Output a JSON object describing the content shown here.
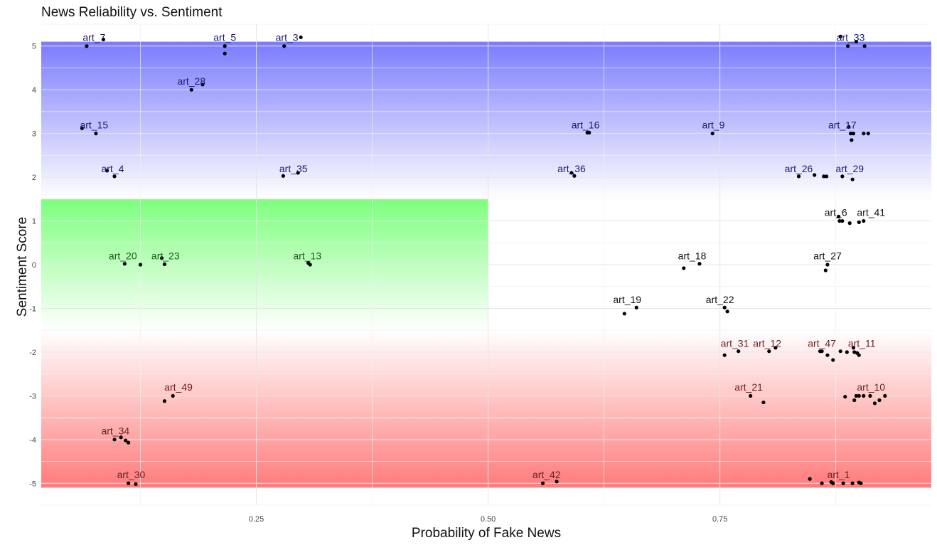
{
  "chart_data": {
    "type": "scatter",
    "title": "News Reliability vs. Sentiment",
    "xlabel": "Probability of Fake News",
    "ylabel": "Sentiment Score",
    "xlim": [
      0.018,
      0.978
    ],
    "ylim": [
      -5.5,
      5.5
    ],
    "x_ticks": [
      0.25,
      0.5,
      0.75
    ],
    "x_tick_labels": [
      "0.25",
      "0.50",
      "0.75"
    ],
    "y_ticks": [
      -5,
      -4,
      -3,
      -2,
      -1,
      0,
      1,
      2,
      3,
      4,
      5
    ],
    "y_tick_labels": [
      "-5",
      "-4",
      "-3",
      "-2",
      "-1",
      "0",
      "1",
      "2",
      "3",
      "4",
      "5"
    ],
    "grid": true,
    "bands": [
      {
        "name": "positive",
        "color": "#7b7bff",
        "x": [
          0.018,
          0.978
        ],
        "y": [
          1.5,
          5.1
        ],
        "fade_toward": "bottom"
      },
      {
        "name": "neutral",
        "color": "#7dff7d",
        "x": [
          0.018,
          0.5
        ],
        "y": [
          -1.5,
          1.5
        ],
        "fade_toward": "bottom"
      },
      {
        "name": "negative",
        "color": "#ff7b7b",
        "x": [
          0.018,
          0.978
        ],
        "y": [
          -5.1,
          -1.5
        ],
        "fade_toward": "top"
      }
    ],
    "point_color": "#000000",
    "points": [
      [
        0.067,
        5.0
      ],
      [
        0.085,
        5.15
      ],
      [
        0.216,
        5.0
      ],
      [
        0.216,
        4.83
      ],
      [
        0.28,
        5.0
      ],
      [
        0.298,
        5.2
      ],
      [
        0.18,
        4.0
      ],
      [
        0.192,
        4.12
      ],
      [
        0.062,
        3.12
      ],
      [
        0.077,
        3.0
      ],
      [
        0.089,
        2.15
      ],
      [
        0.097,
        2.02
      ],
      [
        0.279,
        2.03
      ],
      [
        0.295,
        2.1
      ],
      [
        0.607,
        3.02
      ],
      [
        0.609,
        3.02
      ],
      [
        0.742,
        3.0
      ],
      [
        0.59,
        2.1
      ],
      [
        0.593,
        2.03
      ],
      [
        0.108,
        0.02
      ],
      [
        0.125,
        0.0
      ],
      [
        0.148,
        0.15
      ],
      [
        0.151,
        0.01
      ],
      [
        0.306,
        0.04
      ],
      [
        0.308,
        0.0
      ],
      [
        0.711,
        -0.08
      ],
      [
        0.728,
        0.02
      ],
      [
        0.647,
        -1.12
      ],
      [
        0.66,
        -0.98
      ],
      [
        0.755,
        -0.98
      ],
      [
        0.758,
        -1.07
      ],
      [
        0.755,
        -2.07
      ],
      [
        0.77,
        -1.98
      ],
      [
        0.803,
        -1.98
      ],
      [
        0.81,
        -1.9
      ],
      [
        0.783,
        -3.0
      ],
      [
        0.797,
        -3.15
      ],
      [
        0.151,
        -3.12
      ],
      [
        0.16,
        -3.0
      ],
      [
        0.097,
        -4.0
      ],
      [
        0.104,
        -3.95
      ],
      [
        0.109,
        -4.02
      ],
      [
        0.112,
        -4.07
      ],
      [
        0.112,
        -5.0
      ],
      [
        0.12,
        -5.02
      ],
      [
        0.559,
        -5.0
      ],
      [
        0.574,
        -4.96
      ],
      [
        0.835,
        2.02
      ],
      [
        0.852,
        2.05
      ],
      [
        0.862,
        2.02
      ],
      [
        0.865,
        2.02
      ],
      [
        0.882,
        2.02
      ],
      [
        0.893,
        1.95
      ],
      [
        0.889,
        3.15
      ],
      [
        0.891,
        3.0
      ],
      [
        0.894,
        3.0
      ],
      [
        0.892,
        2.85
      ],
      [
        0.905,
        3.0
      ],
      [
        0.91,
        3.0
      ],
      [
        0.878,
        1.1
      ],
      [
        0.879,
        1.0
      ],
      [
        0.882,
        1.0
      ],
      [
        0.89,
        0.95
      ],
      [
        0.9,
        0.97
      ],
      [
        0.905,
        1.0
      ],
      [
        0.866,
        0.0
      ],
      [
        0.864,
        -0.13
      ],
      [
        0.858,
        -1.98
      ],
      [
        0.86,
        -1.98
      ],
      [
        0.866,
        -2.07
      ],
      [
        0.872,
        -2.18
      ],
      [
        0.88,
        -1.98
      ],
      [
        0.887,
        -2.0
      ],
      [
        0.894,
        -1.9
      ],
      [
        0.895,
        -2.0
      ],
      [
        0.898,
        -2.02
      ],
      [
        0.9,
        -2.07
      ],
      [
        0.885,
        -3.02
      ],
      [
        0.895,
        -3.1
      ],
      [
        0.897,
        -3.0
      ],
      [
        0.9,
        -3.0
      ],
      [
        0.905,
        -3.0
      ],
      [
        0.912,
        -3.0
      ],
      [
        0.917,
        -3.17
      ],
      [
        0.922,
        -3.1
      ],
      [
        0.928,
        -3.0
      ],
      [
        0.847,
        -4.9
      ],
      [
        0.86,
        -5.0
      ],
      [
        0.87,
        -4.97
      ],
      [
        0.872,
        -5.0
      ],
      [
        0.883,
        -5.0
      ],
      [
        0.893,
        -5.0
      ],
      [
        0.9,
        -4.98
      ],
      [
        0.902,
        -5.0
      ],
      [
        0.88,
        5.22
      ],
      [
        0.888,
        5.0
      ],
      [
        0.897,
        5.1
      ],
      [
        0.906,
        5.0
      ]
    ],
    "labels": [
      {
        "text": "art_7",
        "x": 0.075,
        "y": 5.2
      },
      {
        "text": "art_5",
        "x": 0.216,
        "y": 5.2
      },
      {
        "text": "art_3",
        "x": 0.283,
        "y": 5.2
      },
      {
        "text": "art_33",
        "x": 0.891,
        "y": 5.2
      },
      {
        "text": "art_28",
        "x": 0.18,
        "y": 4.2
      },
      {
        "text": "art_15",
        "x": 0.075,
        "y": 3.2
      },
      {
        "text": "art_16",
        "x": 0.605,
        "y": 3.2
      },
      {
        "text": "art_9",
        "x": 0.743,
        "y": 3.2
      },
      {
        "text": "art_17",
        "x": 0.882,
        "y": 3.2
      },
      {
        "text": "art_4",
        "x": 0.095,
        "y": 2.2
      },
      {
        "text": "art_35",
        "x": 0.29,
        "y": 2.2
      },
      {
        "text": "art_36",
        "x": 0.59,
        "y": 2.2
      },
      {
        "text": "art_26",
        "x": 0.835,
        "y": 2.2
      },
      {
        "text": "art_29",
        "x": 0.89,
        "y": 2.2
      },
      {
        "text": "art_6",
        "x": 0.875,
        "y": 1.2
      },
      {
        "text": "art_41",
        "x": 0.913,
        "y": 1.2
      },
      {
        "text": "art_20",
        "x": 0.106,
        "y": 0.2
      },
      {
        "text": "art_23",
        "x": 0.152,
        "y": 0.2
      },
      {
        "text": "art_13",
        "x": 0.305,
        "y": 0.2
      },
      {
        "text": "art_18",
        "x": 0.72,
        "y": 0.2
      },
      {
        "text": "art_27",
        "x": 0.866,
        "y": 0.2
      },
      {
        "text": "art_19",
        "x": 0.65,
        "y": -0.8
      },
      {
        "text": "art_22",
        "x": 0.75,
        "y": -0.8
      },
      {
        "text": "art_31",
        "x": 0.766,
        "y": -1.8
      },
      {
        "text": "art_12",
        "x": 0.801,
        "y": -1.8
      },
      {
        "text": "art_47",
        "x": 0.86,
        "y": -1.8
      },
      {
        "text": "art_11",
        "x": 0.903,
        "y": -1.8
      },
      {
        "text": "art_49",
        "x": 0.166,
        "y": -2.8
      },
      {
        "text": "art_21",
        "x": 0.781,
        "y": -2.8
      },
      {
        "text": "art_10",
        "x": 0.913,
        "y": -2.8
      },
      {
        "text": "art_34",
        "x": 0.098,
        "y": -3.8
      },
      {
        "text": "art_30",
        "x": 0.115,
        "y": -4.8
      },
      {
        "text": "art_42",
        "x": 0.563,
        "y": -4.8
      },
      {
        "text": "art_1",
        "x": 0.878,
        "y": -4.8
      }
    ]
  }
}
